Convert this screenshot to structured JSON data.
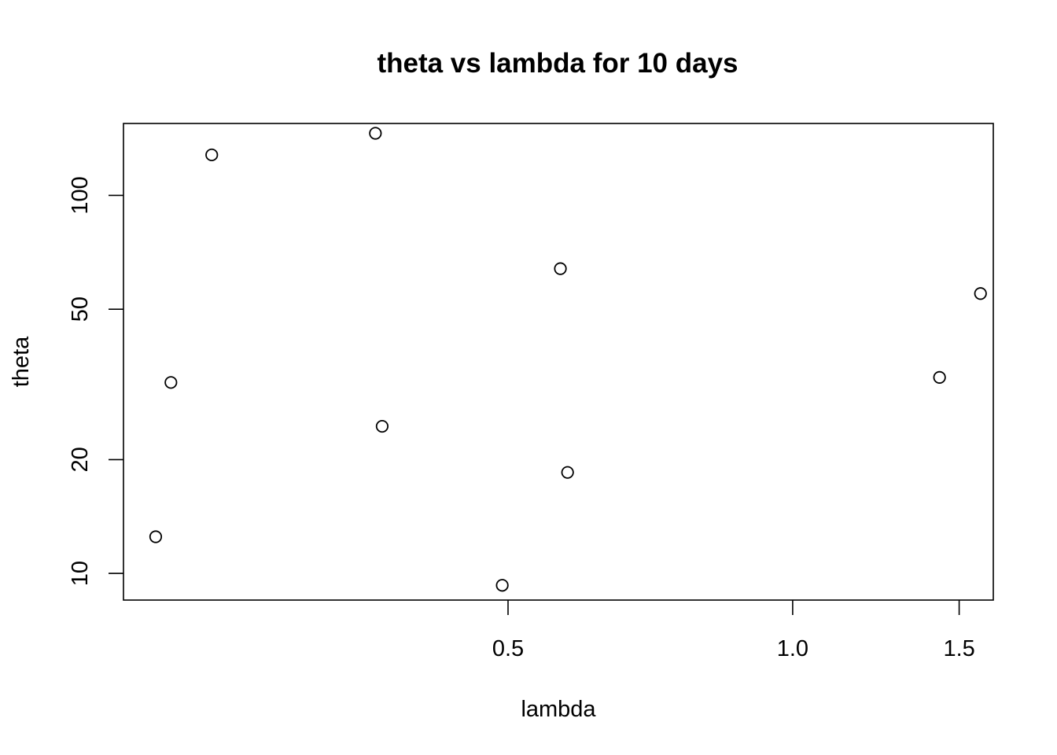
{
  "chart_data": {
    "type": "scatter",
    "title": "theta vs lambda for 10 days",
    "xlabel": "lambda",
    "ylabel": "theta",
    "x_scale": "log",
    "y_scale": "log",
    "xlim": [
      0.196,
      1.63
    ],
    "ylim": [
      8.5,
      155
    ],
    "x_ticks": [
      {
        "value": 0.5,
        "label": "0.5"
      },
      {
        "value": 1.0,
        "label": "1.0"
      },
      {
        "value": 1.5,
        "label": "1.5"
      }
    ],
    "y_ticks": [
      {
        "value": 10,
        "label": "10"
      },
      {
        "value": 20,
        "label": "20"
      },
      {
        "value": 50,
        "label": "50"
      },
      {
        "value": 100,
        "label": "100"
      }
    ],
    "points": [
      {
        "x": 0.212,
        "y": 12.5
      },
      {
        "x": 0.22,
        "y": 32
      },
      {
        "x": 0.243,
        "y": 128
      },
      {
        "x": 0.362,
        "y": 146
      },
      {
        "x": 0.368,
        "y": 24.5
      },
      {
        "x": 0.493,
        "y": 9.3
      },
      {
        "x": 0.568,
        "y": 64
      },
      {
        "x": 0.578,
        "y": 18.5
      },
      {
        "x": 1.43,
        "y": 33
      },
      {
        "x": 1.58,
        "y": 55
      }
    ],
    "grid": false,
    "legend": "none"
  }
}
